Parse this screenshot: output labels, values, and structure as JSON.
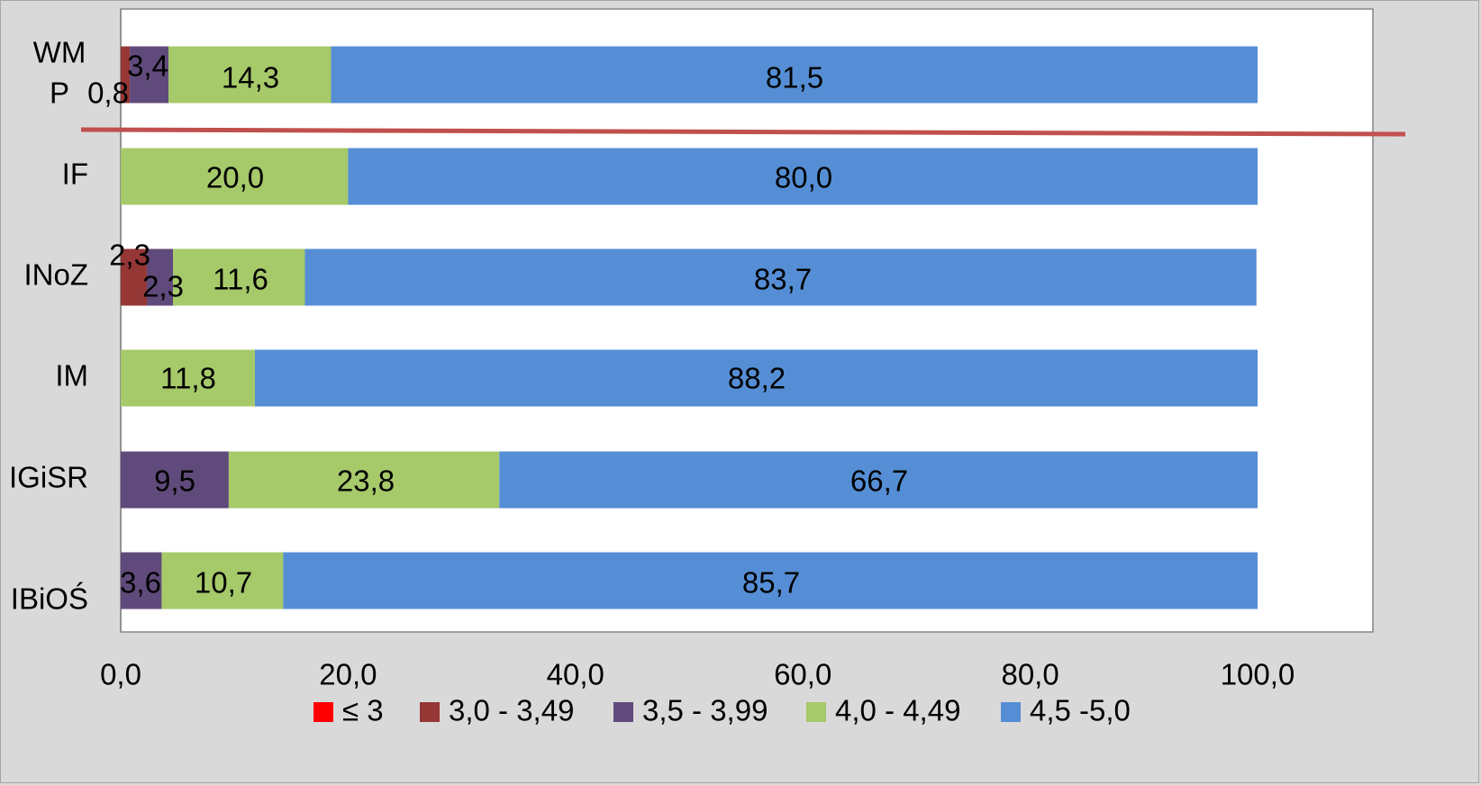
{
  "chart_data": {
    "type": "bar",
    "orientation": "horizontal",
    "stacked": true,
    "categories": [
      "WM P",
      "IF",
      "INoZ",
      "IM",
      "IGiSR",
      "IBiOŚ"
    ],
    "category_lines": [
      [
        "WM",
        "P"
      ],
      [
        "IF"
      ],
      [
        "INoZ"
      ],
      [
        "IM"
      ],
      [
        "IGiSR"
      ],
      [
        "IBiOŚ"
      ]
    ],
    "series": [
      {
        "name": "≤ 3",
        "color": "#ff0000",
        "values": [
          0,
          0,
          0,
          0,
          0,
          0
        ]
      },
      {
        "name": "3,0 - 3,49",
        "color": "#953735",
        "values": [
          0.8,
          0,
          2.3,
          0,
          0,
          0
        ]
      },
      {
        "name": "3,5 - 3,99",
        "color": "#604a7b",
        "values": [
          3.4,
          0,
          2.3,
          0,
          9.5,
          3.6
        ]
      },
      {
        "name": "4,0 - 4,49",
        "color": "#a6c96a",
        "values": [
          14.3,
          20.0,
          11.6,
          11.8,
          23.8,
          10.7
        ]
      },
      {
        "name": "4,5 -5,0",
        "color": "#558ed5",
        "values": [
          81.5,
          80.0,
          83.7,
          88.2,
          66.7,
          85.7
        ]
      }
    ],
    "data_labels": [
      [
        "",
        "0,8",
        "3,4",
        "14,3",
        "81,5"
      ],
      [
        "",
        "",
        "",
        "20,0",
        "80,0"
      ],
      [
        "",
        "2,3",
        "2,3",
        "11,6",
        "83,7"
      ],
      [
        "",
        "",
        "",
        "11,8",
        "88,2"
      ],
      [
        "",
        "",
        "9,5",
        "23,8",
        "66,7"
      ],
      [
        "",
        "",
        "3,6",
        "10,7",
        "85,7"
      ]
    ],
    "xlim": [
      0,
      110
    ],
    "x_ticks": [
      0,
      20,
      40,
      60,
      80,
      100
    ],
    "x_tick_labels": [
      "0,0",
      "20,0",
      "40,0",
      "60,0",
      "80,0",
      "100,0"
    ],
    "legend_position": "bottom",
    "grid": false,
    "annotation": {
      "type": "line",
      "color": "#c0504d",
      "description": "separator line below first category"
    }
  }
}
